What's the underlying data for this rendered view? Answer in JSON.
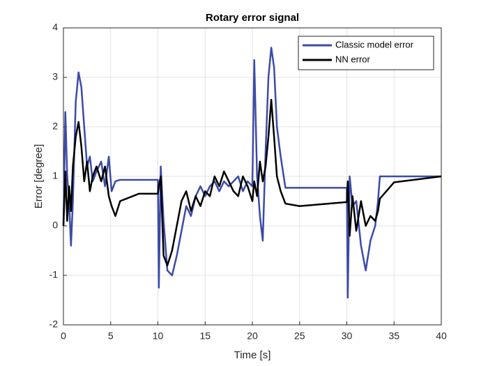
{
  "chart_data": {
    "type": "line",
    "title": "Rotary error signal",
    "x_label": "Time [s]",
    "y_label": "Error [degree]",
    "x": [
      0,
      0.2,
      0.4,
      0.6,
      0.8,
      1.0,
      1.3,
      1.6,
      1.9,
      2.2,
      2.5,
      2.8,
      3.1,
      3.5,
      4.0,
      4.4,
      4.8,
      5.1,
      5.5,
      6,
      8,
      10,
      10.1,
      10.3,
      10.6,
      11,
      11.5,
      12,
      12.5,
      13,
      13.5,
      14,
      14.5,
      15,
      15.5,
      16,
      16.5,
      17,
      17.5,
      18,
      18.5,
      19,
      19.5,
      20,
      20.2,
      20.5,
      20.8,
      21.1,
      21.4,
      21.7,
      22,
      22.3,
      22.6,
      23,
      23.5,
      25,
      30,
      30.1,
      30.3,
      30.6,
      31,
      31.5,
      32,
      32.5,
      33,
      33.3,
      33.5,
      35,
      40
    ],
    "series": [
      {
        "name": "Classic model error",
        "color": "#3b4ba8",
        "values": [
          0,
          2.3,
          1.0,
          0.5,
          -0.4,
          0.5,
          2.5,
          3.1,
          2.8,
          2.0,
          1.2,
          1.4,
          0.9,
          1.1,
          1.3,
          0.8,
          1.4,
          0.7,
          0.9,
          0.93,
          0.93,
          0.93,
          -1.25,
          1.2,
          0.1,
          -0.9,
          -1.0,
          -0.6,
          -0.1,
          0.4,
          0.2,
          0.6,
          0.8,
          0.6,
          0.8,
          0.9,
          0.7,
          0.9,
          0.8,
          0.9,
          1.0,
          0.7,
          0.9,
          0.8,
          3.35,
          1.0,
          0.2,
          -0.3,
          1.5,
          3.0,
          3.6,
          3.2,
          2.0,
          1.4,
          0.77,
          0.77,
          0.77,
          -1.45,
          1.0,
          0.4,
          0.5,
          -0.4,
          -0.9,
          -0.3,
          0.0,
          0.5,
          1.0,
          1.0,
          1.0
        ]
      },
      {
        "name": "NN error",
        "color": "#000000",
        "values": [
          0,
          1.1,
          0.1,
          0.8,
          0.3,
          1.2,
          1.8,
          2.1,
          1.6,
          0.9,
          1.3,
          0.7,
          1.0,
          1.2,
          0.9,
          1.2,
          0.6,
          0.4,
          0.2,
          0.5,
          0.65,
          0.65,
          0.8,
          1.0,
          -0.6,
          -0.8,
          -0.5,
          0.0,
          0.5,
          0.7,
          0.3,
          0.6,
          0.4,
          0.7,
          0.6,
          1.0,
          0.8,
          1.1,
          0.9,
          0.7,
          0.6,
          1.0,
          0.8,
          0.5,
          0.9,
          0.6,
          1.3,
          0.9,
          1.2,
          1.8,
          2.55,
          1.8,
          1.0,
          0.7,
          0.45,
          0.4,
          0.48,
          0.9,
          -0.2,
          0.6,
          -0.1,
          0.5,
          0.0,
          0.2,
          0.1,
          0.3,
          0.55,
          0.88,
          1.0
        ]
      }
    ],
    "xlim": [
      0,
      40
    ],
    "xticks": [
      0,
      5,
      10,
      15,
      20,
      25,
      30,
      35,
      40
    ],
    "ylim": [
      -2,
      4
    ],
    "yticks": [
      -2,
      -1,
      0,
      1,
      2,
      3,
      4
    ],
    "grid": true,
    "legend": "upper right"
  }
}
